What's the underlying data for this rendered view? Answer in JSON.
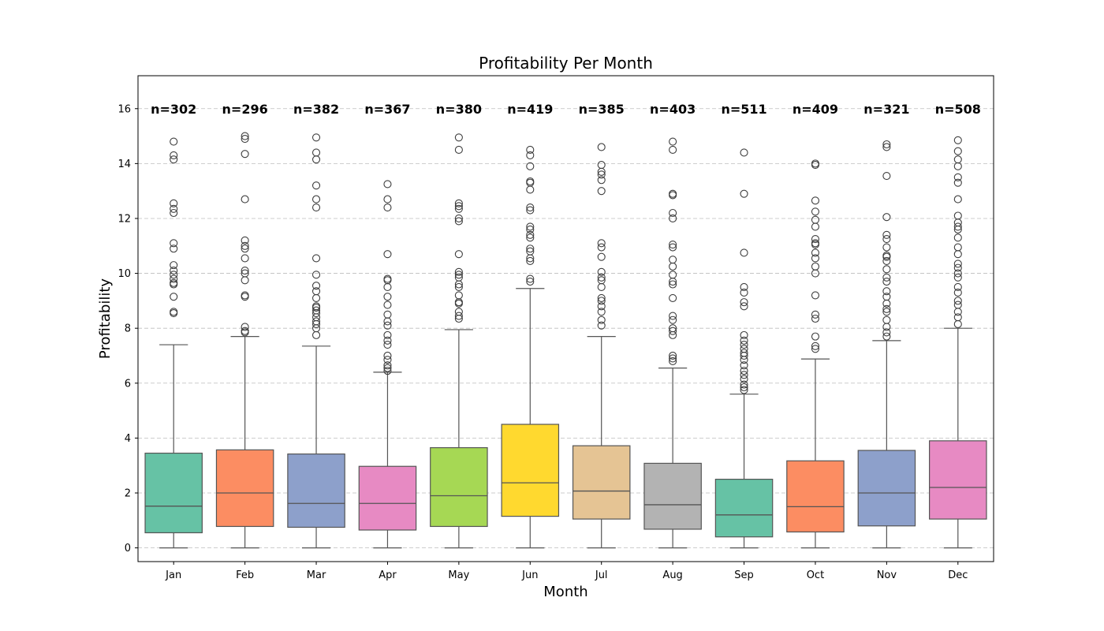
{
  "chart_data": {
    "type": "box",
    "title": "Profitability Per Month",
    "xlabel": "Month",
    "ylabel": "Profitability",
    "ylim": [
      -0.5,
      17.2
    ],
    "yticks": [
      0,
      2,
      4,
      6,
      8,
      10,
      12,
      14,
      16
    ],
    "grid": "y-dashed",
    "categories": [
      "Jan",
      "Feb",
      "Mar",
      "Apr",
      "May",
      "Jun",
      "Jul",
      "Aug",
      "Sep",
      "Oct",
      "Nov",
      "Dec"
    ],
    "count_labels": [
      "n=302",
      "n=296",
      "n=382",
      "n=367",
      "n=380",
      "n=419",
      "n=385",
      "n=403",
      "n=511",
      "n=409",
      "n=321",
      "n=508"
    ],
    "count_label_y": 16,
    "colors": [
      "#66c2a5",
      "#fc8d62",
      "#8da0cb",
      "#e78ac3",
      "#a6d854",
      "#ffd92f",
      "#e5c494",
      "#b3b3b3",
      "#66c2a5",
      "#fc8d62",
      "#8da0cb",
      "#e78ac3"
    ],
    "boxes": [
      {
        "q1": 0.55,
        "median": 1.52,
        "q3": 3.45,
        "whisker_low": 0.0,
        "whisker_high": 7.4,
        "outliers": [
          8.55,
          8.6,
          9.15,
          9.6,
          9.65,
          9.8,
          9.95,
          10.1,
          10.3,
          10.9,
          11.1,
          12.2,
          12.35,
          12.55,
          14.15,
          14.3,
          14.8
        ]
      },
      {
        "q1": 0.78,
        "median": 2.0,
        "q3": 3.57,
        "whisker_low": 0.0,
        "whisker_high": 7.7,
        "outliers": [
          7.85,
          7.9,
          8.05,
          9.15,
          9.2,
          9.75,
          10.0,
          10.1,
          10.55,
          10.9,
          11.0,
          11.2,
          12.7,
          14.35,
          14.9,
          15.0
        ]
      },
      {
        "q1": 0.75,
        "median": 1.62,
        "q3": 3.42,
        "whisker_low": 0.0,
        "whisker_high": 7.35,
        "outliers": [
          7.75,
          8.0,
          8.15,
          8.25,
          8.4,
          8.55,
          8.65,
          8.75,
          8.8,
          9.1,
          9.35,
          9.55,
          9.95,
          10.55,
          12.4,
          12.7,
          13.2,
          14.15,
          14.4,
          14.95
        ]
      },
      {
        "q1": 0.65,
        "median": 1.62,
        "q3": 2.97,
        "whisker_low": 0.0,
        "whisker_high": 6.4,
        "outliers": [
          6.45,
          6.55,
          6.65,
          6.85,
          7.0,
          7.4,
          7.55,
          7.75,
          8.1,
          8.25,
          8.5,
          8.85,
          9.15,
          9.5,
          9.75,
          9.8,
          10.7,
          12.4,
          12.7,
          13.25
        ]
      },
      {
        "q1": 0.78,
        "median": 1.9,
        "q3": 3.65,
        "whisker_low": 0.0,
        "whisker_high": 7.95,
        "outliers": [
          8.35,
          8.45,
          8.6,
          8.9,
          8.95,
          9.2,
          9.5,
          9.6,
          9.85,
          9.95,
          10.05,
          10.7,
          11.9,
          12.0,
          12.35,
          12.45,
          12.55,
          14.5,
          14.95
        ]
      },
      {
        "q1": 1.15,
        "median": 2.37,
        "q3": 4.5,
        "whisker_low": 0.0,
        "whisker_high": 9.45,
        "outliers": [
          9.7,
          9.8,
          10.45,
          10.55,
          10.8,
          10.9,
          11.3,
          11.4,
          11.6,
          11.7,
          12.3,
          12.4,
          13.05,
          13.3,
          13.35,
          13.9,
          14.3,
          14.5
        ]
      },
      {
        "q1": 1.05,
        "median": 2.07,
        "q3": 3.72,
        "whisker_low": 0.0,
        "whisker_high": 7.7,
        "outliers": [
          8.1,
          8.3,
          8.6,
          8.8,
          9.0,
          9.1,
          9.5,
          9.75,
          9.85,
          10.05,
          10.6,
          10.95,
          11.1,
          13.0,
          13.4,
          13.6,
          13.7,
          13.95,
          14.6
        ]
      },
      {
        "q1": 0.68,
        "median": 1.57,
        "q3": 3.08,
        "whisker_low": 0.0,
        "whisker_high": 6.55,
        "outliers": [
          6.8,
          6.9,
          7.0,
          7.75,
          7.9,
          8.0,
          8.3,
          8.45,
          9.1,
          9.6,
          9.7,
          9.95,
          10.25,
          10.5,
          10.95,
          11.05,
          12.0,
          12.2,
          12.85,
          12.9,
          14.5,
          14.8
        ]
      },
      {
        "q1": 0.4,
        "median": 1.2,
        "q3": 2.5,
        "whisker_low": 0.0,
        "whisker_high": 5.6,
        "outliers": [
          5.75,
          5.85,
          5.95,
          6.15,
          6.3,
          6.45,
          6.65,
          6.85,
          7.0,
          7.1,
          7.25,
          7.4,
          7.55,
          7.75,
          8.8,
          8.95,
          9.3,
          9.5,
          10.75,
          12.9,
          14.4
        ]
      },
      {
        "q1": 0.58,
        "median": 1.5,
        "q3": 3.17,
        "whisker_low": 0.0,
        "whisker_high": 6.88,
        "outliers": [
          7.25,
          7.35,
          7.7,
          8.35,
          8.5,
          9.2,
          10.0,
          10.25,
          10.55,
          10.75,
          11.05,
          11.1,
          11.25,
          11.7,
          11.95,
          12.25,
          12.65,
          13.95,
          14.0
        ]
      },
      {
        "q1": 0.8,
        "median": 2.0,
        "q3": 3.55,
        "whisker_low": 0.0,
        "whisker_high": 7.55,
        "outliers": [
          7.7,
          7.85,
          8.05,
          8.3,
          8.6,
          8.7,
          8.9,
          9.15,
          9.35,
          9.7,
          9.85,
          10.15,
          10.45,
          10.6,
          10.65,
          10.95,
          11.25,
          11.4,
          12.05,
          13.55,
          14.6,
          14.7
        ]
      },
      {
        "q1": 1.05,
        "median": 2.2,
        "q3": 3.9,
        "whisker_low": 0.0,
        "whisker_high": 8.0,
        "outliers": [
          8.15,
          8.4,
          8.6,
          8.85,
          9.0,
          9.3,
          9.5,
          9.85,
          10.0,
          10.2,
          10.35,
          10.7,
          10.95,
          11.3,
          11.6,
          11.7,
          11.85,
          12.1,
          12.7,
          13.3,
          13.5,
          13.9,
          14.15,
          14.45,
          14.85
        ]
      }
    ]
  }
}
